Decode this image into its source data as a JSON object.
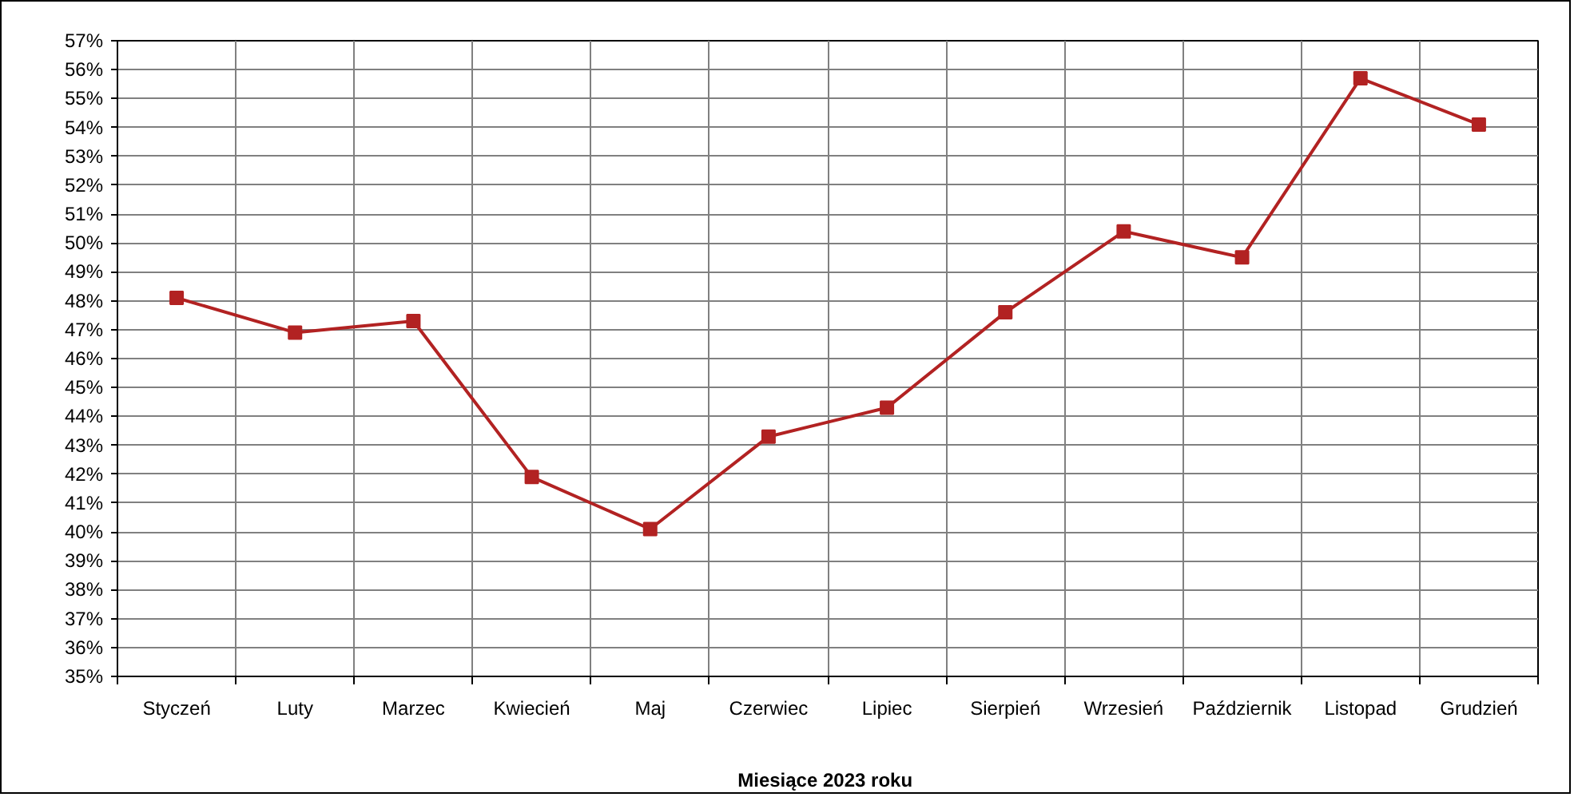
{
  "chart_data": {
    "type": "line",
    "xlabel": "Miesiące 2023  roku",
    "categories": [
      "Styczeń",
      "Luty",
      "Marzec",
      "Kwiecień",
      "Maj",
      "Czerwiec",
      "Lipiec",
      "Sierpień",
      "Wrzesień",
      "Październik",
      "Listopad",
      "Grudzień"
    ],
    "series": [
      {
        "color": "#b22222",
        "values": [
          48.1,
          46.9,
          47.3,
          41.9,
          40.1,
          43.3,
          44.3,
          47.6,
          50.4,
          49.5,
          55.7,
          54.1
        ]
      }
    ],
    "ylim": [
      35,
      57
    ],
    "yticks": [
      {
        "value": 35,
        "label": "35%"
      },
      {
        "value": 36,
        "label": "36%"
      },
      {
        "value": 37,
        "label": "37%"
      },
      {
        "value": 38,
        "label": "38%"
      },
      {
        "value": 39,
        "label": "39%"
      },
      {
        "value": 40,
        "label": "40%"
      },
      {
        "value": 41,
        "label": "41%"
      },
      {
        "value": 42,
        "label": "42%"
      },
      {
        "value": 43,
        "label": "43%"
      },
      {
        "value": 44,
        "label": "44%"
      },
      {
        "value": 45,
        "label": "45%"
      },
      {
        "value": 46,
        "label": "46%"
      },
      {
        "value": 47,
        "label": "47%"
      },
      {
        "value": 48,
        "label": "48%"
      },
      {
        "value": 49,
        "label": "49%"
      },
      {
        "value": 50,
        "label": "50%"
      },
      {
        "value": 51,
        "label": "51%"
      },
      {
        "value": 52,
        "label": "52%"
      },
      {
        "value": 53,
        "label": "53%"
      },
      {
        "value": 54,
        "label": "54%"
      },
      {
        "value": 55,
        "label": "55%"
      },
      {
        "value": 56,
        "label": "56%"
      },
      {
        "value": 57,
        "label": "57%"
      }
    ],
    "grid": true,
    "marker": "square",
    "line_style": "solid"
  }
}
